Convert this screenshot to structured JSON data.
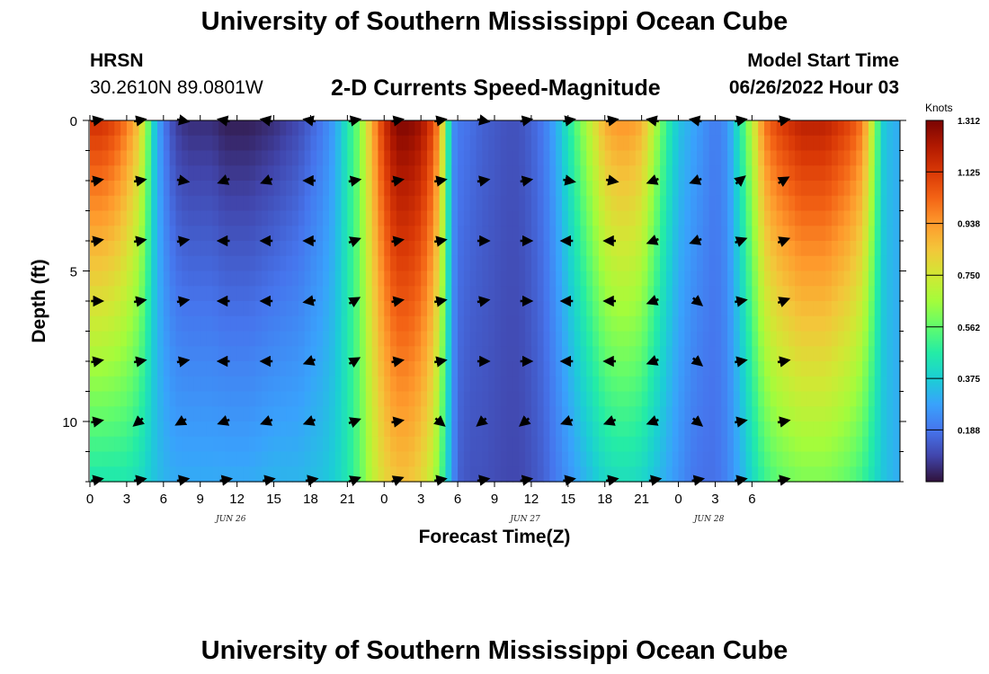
{
  "header": {
    "title": "University of Southern Mississippi Ocean Cube",
    "station": "HRSN",
    "coordinates": "30.2610N  89.0801W",
    "subtitle": "2-D Currents Speed-Magnitude",
    "model_start_label": "Model Start Time",
    "model_start_value": "06/26/2022 Hour 03"
  },
  "footer": {
    "title": "University of Southern Mississippi Ocean Cube"
  },
  "colors": {
    "ramp": [
      "#30123b",
      "#4145ab",
      "#4675ed",
      "#39a2fc",
      "#1bcfd4",
      "#24eca6",
      "#61fc6c",
      "#a4fc3b",
      "#d1e834",
      "#f3c63a",
      "#fe9b2d",
      "#f36315",
      "#d93806",
      "#b11901",
      "#7a0402"
    ]
  },
  "chart_data": {
    "type": "heatmap",
    "title": "2-D Currents Speed-Magnitude",
    "xlabel": "Forecast Time(Z)",
    "ylabel": "Depth (ft)",
    "x_hours": [
      0,
      66
    ],
    "x_tick_labels": [
      "0",
      "3",
      "6",
      "9",
      "12",
      "15",
      "18",
      "21",
      "0",
      "3",
      "6",
      "9",
      "12",
      "15",
      "18",
      "21",
      "0",
      "3",
      "6"
    ],
    "date_labels": [
      {
        "text": "JUN 26",
        "hour": 11.5
      },
      {
        "text": "JUN 27",
        "hour": 35.5
      },
      {
        "text": "JUN 28",
        "hour": 50.5
      }
    ],
    "ylim": [
      0,
      12
    ],
    "y_ticks": [
      0,
      5,
      10
    ],
    "colorbar": {
      "unit": "Knots",
      "min": 0.0,
      "max": 1.312,
      "ticks": [
        1.312,
        1.125,
        0.938,
        0.75,
        0.562,
        0.375,
        0.188
      ]
    },
    "speed_profile_knots": {
      "hours": [
        0,
        1,
        2,
        3,
        4,
        4.7,
        5.3,
        6,
        7,
        8,
        10,
        11,
        12,
        13,
        15,
        17,
        19,
        20,
        21,
        22,
        23,
        24,
        25,
        26,
        27,
        28,
        28.6,
        29.1,
        29.6,
        30,
        31,
        32,
        34,
        35,
        36,
        37,
        38,
        39,
        40,
        41,
        42,
        43,
        44,
        45,
        46,
        47,
        48,
        49,
        50,
        51,
        52,
        53,
        54,
        55,
        56,
        57,
        58,
        59,
        60,
        61,
        62,
        63,
        63.6,
        64.2,
        64.8,
        66
      ],
      "surface": [
        1.15,
        1.15,
        1.1,
        1.0,
        0.85,
        0.6,
        0.35,
        0.2,
        0.08,
        0.05,
        0.05,
        0.02,
        0.02,
        0.02,
        0.05,
        0.1,
        0.2,
        0.28,
        0.45,
        0.6,
        0.9,
        1.15,
        1.3,
        1.3,
        1.25,
        1.1,
        0.9,
        0.55,
        0.25,
        0.2,
        0.18,
        0.15,
        0.12,
        0.12,
        0.15,
        0.2,
        0.3,
        0.45,
        0.6,
        0.75,
        0.9,
        0.95,
        0.95,
        0.9,
        0.7,
        0.5,
        0.35,
        0.3,
        0.25,
        0.2,
        0.25,
        0.45,
        0.7,
        1.0,
        1.1,
        1.15,
        1.2,
        1.2,
        1.2,
        1.15,
        1.1,
        1.0,
        0.8,
        0.55,
        0.35,
        0.3
      ],
      "bottom": [
        0.45,
        0.45,
        0.45,
        0.45,
        0.42,
        0.38,
        0.35,
        0.32,
        0.3,
        0.3,
        0.3,
        0.3,
        0.3,
        0.3,
        0.32,
        0.32,
        0.35,
        0.38,
        0.45,
        0.55,
        0.7,
        0.8,
        0.85,
        0.85,
        0.8,
        0.7,
        0.55,
        0.4,
        0.25,
        0.15,
        0.12,
        0.12,
        0.1,
        0.1,
        0.12,
        0.15,
        0.2,
        0.25,
        0.3,
        0.35,
        0.4,
        0.42,
        0.42,
        0.4,
        0.35,
        0.3,
        0.25,
        0.2,
        0.18,
        0.18,
        0.22,
        0.3,
        0.4,
        0.5,
        0.55,
        0.58,
        0.6,
        0.6,
        0.6,
        0.58,
        0.55,
        0.5,
        0.45,
        0.4,
        0.35,
        0.3
      ]
    },
    "vector_hours": [
      0.5,
      4,
      7.5,
      11,
      14.5,
      18,
      21.5,
      25,
      28.5,
      32,
      35.5,
      39,
      42.5,
      46,
      49.5,
      53,
      56.5
    ],
    "vector_depths": [
      0,
      2,
      4,
      6,
      8,
      10,
      12
    ],
    "vector_direction_deg": [
      [
        80,
        80,
        100,
        280,
        280,
        280,
        80,
        80,
        80,
        100,
        80,
        80,
        80,
        280,
        280,
        80,
        80
      ],
      [
        80,
        80,
        100,
        250,
        250,
        270,
        80,
        80,
        80,
        80,
        80,
        100,
        100,
        250,
        250,
        50,
        60
      ],
      [
        80,
        80,
        80,
        270,
        270,
        270,
        70,
        80,
        80,
        90,
        90,
        270,
        270,
        250,
        250,
        70,
        70
      ],
      [
        90,
        80,
        80,
        270,
        270,
        260,
        60,
        80,
        80,
        80,
        90,
        270,
        270,
        250,
        130,
        80,
        70
      ],
      [
        80,
        80,
        80,
        270,
        270,
        250,
        60,
        80,
        80,
        90,
        90,
        270,
        270,
        250,
        130,
        80,
        80
      ],
      [
        80,
        230,
        240,
        250,
        250,
        250,
        70,
        80,
        130,
        230,
        230,
        250,
        250,
        250,
        130,
        80,
        80
      ],
      [
        80,
        80,
        80,
        80,
        80,
        80,
        70,
        70,
        80,
        80,
        80,
        80,
        80,
        80,
        80,
        80,
        80
      ]
    ]
  }
}
